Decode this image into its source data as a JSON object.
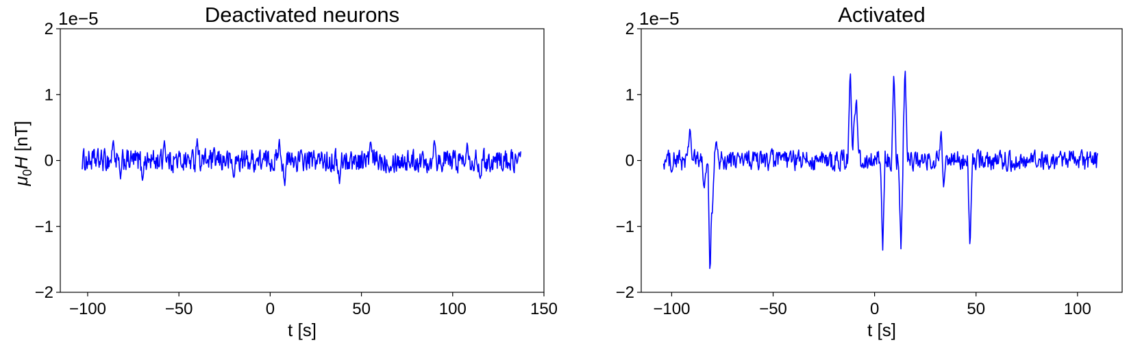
{
  "ylabel_parts": {
    "base": "μ",
    "sub": "0",
    "rest": "H",
    "unit": " [nT]"
  },
  "chart_data": [
    {
      "type": "line",
      "title": "Deactivated neurons",
      "xlabel": "t [s]",
      "ylabel": "μ0H [nT]",
      "offset_text": "1e−5",
      "xlim": [
        -115,
        150
      ],
      "ylim": [
        -2,
        2
      ],
      "xticks": [
        -100,
        -50,
        0,
        50,
        100,
        150
      ],
      "xtick_labels": [
        "−100",
        "−50",
        "0",
        "50",
        "100",
        "150"
      ],
      "yticks": [
        -2,
        -1,
        0,
        1,
        2
      ],
      "ytick_labels": [
        "−2",
        "−1",
        "0",
        "1",
        "2"
      ],
      "color": "#0000ff",
      "x_range": [
        -103,
        137.5
      ],
      "grid": false,
      "noise_amplitude": 0.12,
      "spikes": [
        {
          "x": -86,
          "y": 0.32
        },
        {
          "x": -82,
          "y": -0.28
        },
        {
          "x": -70,
          "y": -0.3
        },
        {
          "x": -58,
          "y": 0.3
        },
        {
          "x": -40,
          "y": 0.33
        },
        {
          "x": -20,
          "y": -0.28
        },
        {
          "x": 5,
          "y": 0.32
        },
        {
          "x": 8,
          "y": -0.38
        },
        {
          "x": 38,
          "y": -0.35
        },
        {
          "x": 55,
          "y": 0.3
        },
        {
          "x": 90,
          "y": 0.34
        },
        {
          "x": 108,
          "y": 0.3
        },
        {
          "x": 115,
          "y": -0.28
        }
      ]
    },
    {
      "type": "line",
      "title": "Activated",
      "xlabel": "t [s]",
      "ylabel": "",
      "offset_text": "1e−5",
      "xlim": [
        -115,
        122
      ],
      "ylim": [
        -2,
        2
      ],
      "xticks": [
        -100,
        -50,
        0,
        50,
        100
      ],
      "xtick_labels": [
        "−100",
        "−50",
        "0",
        "50",
        "100"
      ],
      "yticks": [
        -2,
        -1,
        0,
        1,
        2
      ],
      "ytick_labels": [
        "−2",
        "−1",
        "0",
        "1",
        "2"
      ],
      "color": "#0000ff",
      "x_range": [
        -104,
        110
      ],
      "grid": false,
      "noise_amplitude": 0.11,
      "spikes": [
        {
          "x": -91,
          "y": 0.52
        },
        {
          "x": -84,
          "y": -0.45
        },
        {
          "x": -81,
          "y": -1.97
        },
        {
          "x": -80,
          "y": -0.8
        },
        {
          "x": -78,
          "y": 0.3
        },
        {
          "x": -12,
          "y": 1.43
        },
        {
          "x": -10,
          "y": 0.6
        },
        {
          "x": -9,
          "y": 1.0
        },
        {
          "x": 4,
          "y": -1.36
        },
        {
          "x": 9.5,
          "y": 1.39
        },
        {
          "x": 13,
          "y": -1.34
        },
        {
          "x": 15,
          "y": 1.47
        },
        {
          "x": 33,
          "y": 0.52
        },
        {
          "x": 34,
          "y": -0.4
        },
        {
          "x": 47,
          "y": -1.38
        }
      ]
    }
  ]
}
